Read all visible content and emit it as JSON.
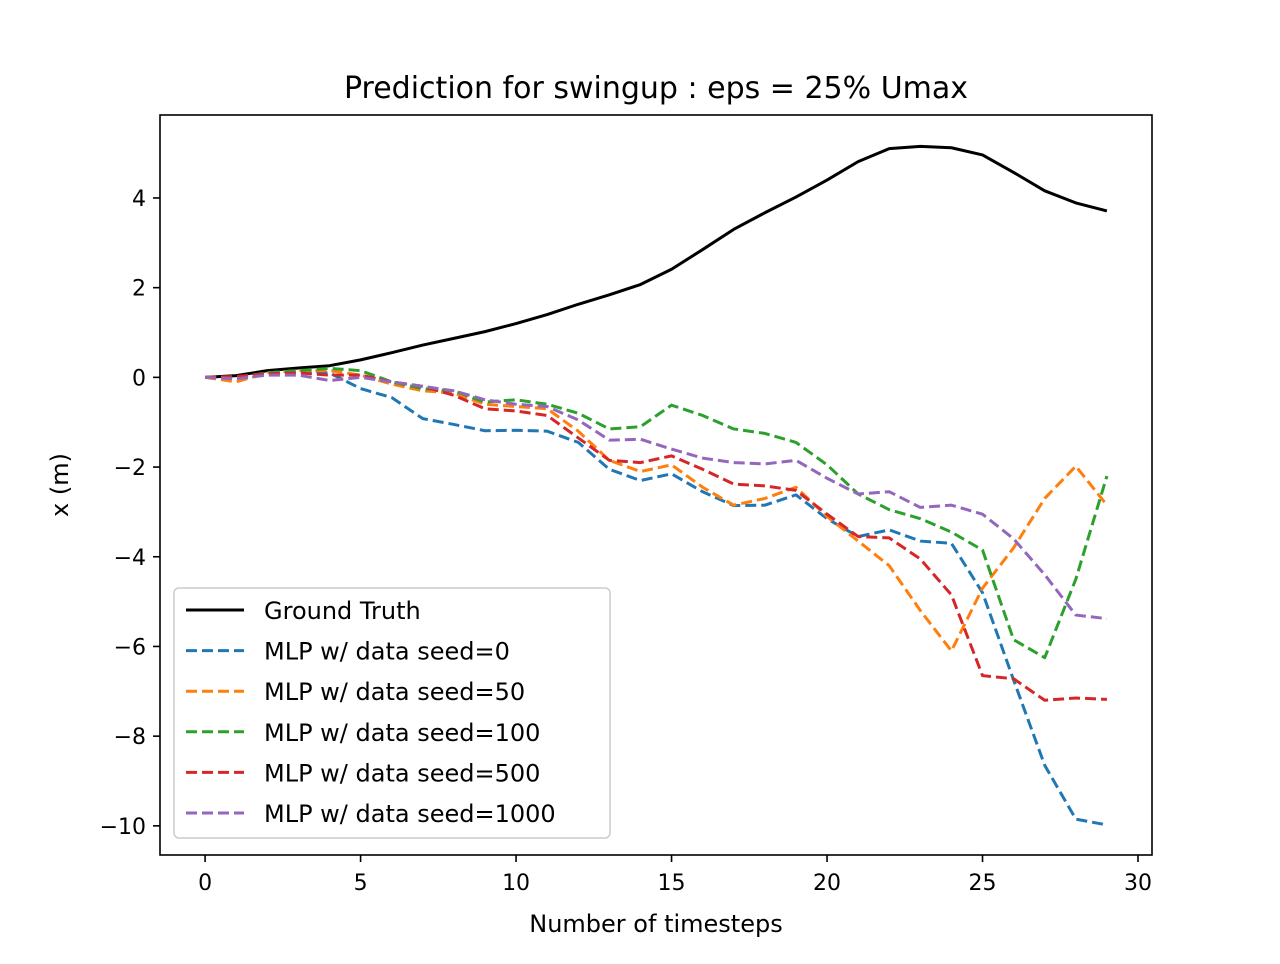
{
  "chart_data": {
    "type": "line",
    "title": "Prediction for swingup : eps = 25% Umax",
    "xlabel": "Number of timesteps",
    "ylabel": "x (m)",
    "xlim": [
      -1.45,
      30.45
    ],
    "ylim": [
      -10.65,
      5.85
    ],
    "xticks": [
      0,
      5,
      10,
      15,
      20,
      25,
      30
    ],
    "xtick_labels": [
      "0",
      "5",
      "10",
      "15",
      "20",
      "25",
      "30"
    ],
    "yticks": [
      4,
      2,
      0,
      -2,
      -4,
      -6,
      -8,
      -10
    ],
    "ytick_labels": [
      "4",
      "2",
      "0",
      "−2",
      "−4",
      "−6",
      "−8",
      "−10"
    ],
    "grid": false,
    "legend_position": "lower-left",
    "x": [
      0,
      1,
      2,
      3,
      4,
      5,
      6,
      7,
      8,
      9,
      10,
      11,
      12,
      13,
      14,
      15,
      16,
      17,
      18,
      19,
      20,
      21,
      22,
      23,
      24,
      25,
      26,
      27,
      28,
      29
    ],
    "series": [
      {
        "name": "Ground Truth",
        "color": "#000000",
        "style": "solid",
        "values": [
          0,
          0.04,
          0.15,
          0.21,
          0.26,
          0.39,
          0.55,
          0.72,
          0.87,
          1.02,
          1.2,
          1.4,
          1.63,
          1.84,
          2.07,
          2.41,
          2.85,
          3.3,
          3.67,
          4.02,
          4.4,
          4.81,
          5.1,
          5.15,
          5.12,
          4.96,
          4.57,
          4.16,
          3.89,
          3.71
        ]
      },
      {
        "name": "MLP w/ data seed=0",
        "color": "#1f77b4",
        "style": "dashed",
        "values": [
          0,
          -0.03,
          0.1,
          0.15,
          0.1,
          -0.25,
          -0.45,
          -0.92,
          -1.05,
          -1.19,
          -1.18,
          -1.2,
          -1.45,
          -2.05,
          -2.3,
          -2.15,
          -2.55,
          -2.86,
          -2.85,
          -2.62,
          -3.15,
          -3.55,
          -3.4,
          -3.65,
          -3.7,
          -4.8,
          -6.75,
          -8.65,
          -9.85,
          -9.98
        ]
      },
      {
        "name": "MLP w/ data seed=50",
        "color": "#ff7f0e",
        "style": "dashed",
        "values": [
          0,
          -0.1,
          0.1,
          0.15,
          0.15,
          0.05,
          -0.15,
          -0.3,
          -0.35,
          -0.6,
          -0.65,
          -0.7,
          -1.2,
          -1.85,
          -2.1,
          -1.95,
          -2.45,
          -2.85,
          -2.7,
          -2.45,
          -3.1,
          -3.65,
          -4.2,
          -5.2,
          -6.1,
          -4.7,
          -3.8,
          -2.7,
          -1.98,
          -2.85
        ]
      },
      {
        "name": "MLP w/ data seed=100",
        "color": "#2ca02c",
        "style": "dashed",
        "values": [
          0,
          0,
          0.1,
          0.15,
          0.2,
          0.15,
          -0.1,
          -0.25,
          -0.3,
          -0.55,
          -0.5,
          -0.6,
          -0.8,
          -1.15,
          -1.1,
          -0.62,
          -0.85,
          -1.15,
          -1.25,
          -1.45,
          -1.95,
          -2.6,
          -2.95,
          -3.15,
          -3.45,
          -3.85,
          -5.85,
          -6.25,
          -4.5,
          -2.2
        ]
      },
      {
        "name": "MLP w/ data seed=500",
        "color": "#d62728",
        "style": "dashed",
        "values": [
          0,
          0.02,
          0.08,
          0.1,
          0.05,
          0.05,
          -0.1,
          -0.2,
          -0.4,
          -0.7,
          -0.75,
          -0.85,
          -1.35,
          -1.85,
          -1.9,
          -1.75,
          -2.05,
          -2.38,
          -2.42,
          -2.52,
          -3.05,
          -3.55,
          -3.58,
          -4.05,
          -4.85,
          -6.65,
          -6.72,
          -7.2,
          -7.15,
          -7.18
        ]
      },
      {
        "name": "MLP w/ data seed=1000",
        "color": "#9467bd",
        "style": "dashed",
        "values": [
          0,
          -0.03,
          0.05,
          0.05,
          -0.07,
          0,
          -0.1,
          -0.2,
          -0.3,
          -0.5,
          -0.6,
          -0.65,
          -0.95,
          -1.4,
          -1.38,
          -1.6,
          -1.8,
          -1.9,
          -1.93,
          -1.85,
          -2.25,
          -2.6,
          -2.55,
          -2.9,
          -2.85,
          -3.05,
          -3.6,
          -4.4,
          -5.3,
          -5.38
        ]
      }
    ]
  }
}
